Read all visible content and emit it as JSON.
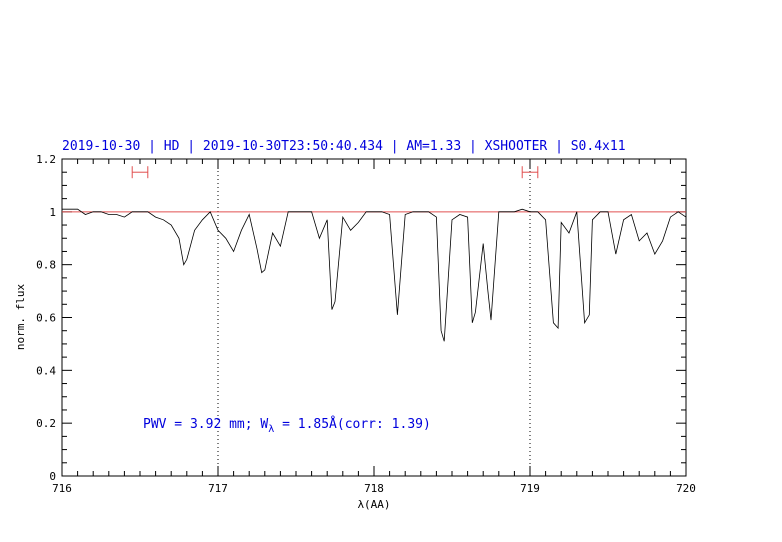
{
  "chart_data": {
    "type": "line",
    "title": "2019-10-30 | HD | 2019-10-30T23:50:40.434 | AM=1.33 | XSHOOTER | S0.4x11",
    "xlabel": "λ(AA)",
    "ylabel": "norm. flux",
    "xlim": [
      716,
      720
    ],
    "ylim": [
      0,
      1.2
    ],
    "x_ticks": [
      "716",
      "717",
      "718",
      "719",
      "720"
    ],
    "y_ticks": [
      "0",
      "0.2",
      "0.4",
      "0.6",
      "0.8",
      "1",
      "1.2"
    ],
    "annotation": {
      "prefix": "PWV = 3.92 mm; W",
      "subscript": "λ",
      "suffix": " = 1.85Å(corr: 1.39)"
    },
    "reference_line": {
      "y": 1.0,
      "color": "#e05050"
    },
    "vertical_markers": [
      717.0,
      719.0
    ],
    "continuum_windows": [
      {
        "x_start": 716.45,
        "x_end": 716.55,
        "y": 1.15
      },
      {
        "x_start": 718.95,
        "x_end": 719.05,
        "y": 1.15
      }
    ],
    "series": [
      {
        "color": "#000000",
        "x": [
          716.0,
          716.05,
          716.1,
          716.15,
          716.2,
          716.25,
          716.3,
          716.35,
          716.4,
          716.45,
          716.5,
          716.55,
          716.6,
          716.65,
          716.7,
          716.75,
          716.78,
          716.8,
          716.85,
          716.9,
          716.95,
          717.0,
          717.05,
          717.1,
          717.15,
          717.2,
          717.25,
          717.28,
          717.3,
          717.35,
          717.4,
          717.45,
          717.5,
          717.55,
          717.6,
          717.65,
          717.7,
          717.73,
          717.75,
          717.8,
          717.85,
          717.9,
          717.95,
          718.0,
          718.05,
          718.1,
          718.15,
          718.2,
          718.25,
          718.3,
          718.35,
          718.4,
          718.43,
          718.45,
          718.5,
          718.55,
          718.6,
          718.63,
          718.65,
          718.7,
          718.73,
          718.75,
          718.8,
          718.85,
          718.9,
          718.95,
          719.0,
          719.05,
          719.1,
          719.15,
          719.18,
          719.2,
          719.25,
          719.3,
          719.35,
          719.38,
          719.4,
          719.45,
          719.5,
          719.55,
          719.6,
          719.65,
          719.7,
          719.75,
          719.8,
          719.85,
          719.9,
          719.95,
          720.0
        ],
        "y": [
          1.01,
          1.01,
          1.01,
          0.99,
          1.0,
          1.0,
          0.99,
          0.99,
          0.98,
          1.0,
          1.0,
          1.0,
          0.98,
          0.97,
          0.95,
          0.9,
          0.8,
          0.82,
          0.93,
          0.97,
          1.0,
          0.93,
          0.9,
          0.85,
          0.93,
          0.99,
          0.86,
          0.77,
          0.78,
          0.92,
          0.87,
          1.0,
          1.0,
          1.0,
          1.0,
          0.9,
          0.97,
          0.63,
          0.66,
          0.98,
          0.93,
          0.96,
          1.0,
          1.0,
          1.0,
          0.99,
          0.61,
          0.99,
          1.0,
          1.0,
          1.0,
          0.98,
          0.55,
          0.51,
          0.97,
          0.99,
          0.98,
          0.58,
          0.62,
          0.88,
          0.7,
          0.59,
          1.0,
          1.0,
          1.0,
          1.01,
          1.0,
          1.0,
          0.97,
          0.58,
          0.56,
          0.96,
          0.92,
          1.0,
          0.58,
          0.61,
          0.97,
          1.0,
          1.0,
          0.84,
          0.97,
          0.99,
          0.89,
          0.92,
          0.84,
          0.89,
          0.98,
          1.0,
          0.98
        ]
      }
    ]
  }
}
